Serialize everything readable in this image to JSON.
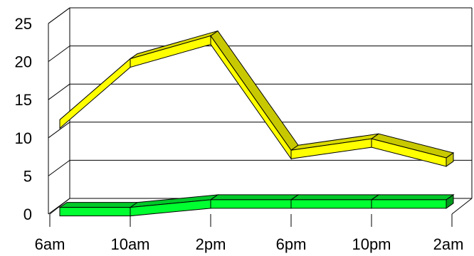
{
  "chart_data": {
    "type": "line",
    "style": "3d-ribbon",
    "title": "",
    "xlabel": "",
    "ylabel": "",
    "categories": [
      "6am",
      "10am",
      "2pm",
      "6pm",
      "10pm",
      "2am"
    ],
    "ylim": [
      0,
      25
    ],
    "yticks": [
      0,
      5,
      10,
      15,
      20,
      25
    ],
    "grid": true,
    "legend": "none",
    "series": [
      {
        "values": [
          12,
          20,
          23,
          8,
          9.5,
          7
        ],
        "color": "#ffff00",
        "side_color": "#c8c800",
        "top_color": "#d9d900"
      },
      {
        "values": [
          0.5,
          0.5,
          1.5,
          1.5,
          1.5,
          1.5
        ],
        "color": "#00ff30",
        "side_color": "#009a1c",
        "top_color": "#00c828"
      }
    ]
  }
}
